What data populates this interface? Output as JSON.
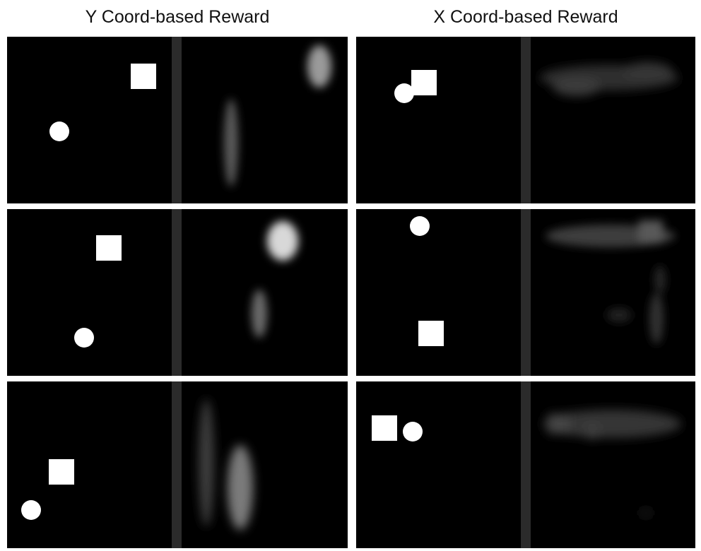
{
  "figure": {
    "titles": {
      "y_reward": "Y Coord-based Reward",
      "x_reward": "X Coord-based Reward"
    },
    "colors": {
      "background": "#000000",
      "divider": "#2b2b2b",
      "object": "#ffffff",
      "page": "#ffffff"
    },
    "shapes": [
      "square",
      "circle"
    ],
    "panels": [
      {
        "column": "y_reward",
        "row": 1,
        "left_frame": "environment observation",
        "right_frame": "blurred reward heatmap"
      },
      {
        "column": "y_reward",
        "row": 2,
        "left_frame": "environment observation",
        "right_frame": "blurred reward heatmap"
      },
      {
        "column": "y_reward",
        "row": 3,
        "left_frame": "environment observation",
        "right_frame": "blurred reward heatmap"
      },
      {
        "column": "x_reward",
        "row": 1,
        "left_frame": "environment observation",
        "right_frame": "blurred reward heatmap"
      },
      {
        "column": "x_reward",
        "row": 2,
        "left_frame": "environment observation",
        "right_frame": "blurred reward heatmap"
      },
      {
        "column": "x_reward",
        "row": 3,
        "left_frame": "environment observation",
        "right_frame": "blurred reward heatmap"
      }
    ]
  }
}
